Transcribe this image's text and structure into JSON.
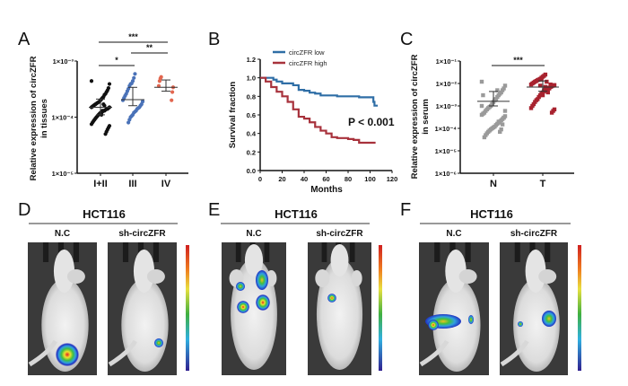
{
  "panel_labels": [
    "A",
    "B",
    "C",
    "D",
    "E",
    "F"
  ],
  "chart_data": [
    {
      "type": "scatter",
      "panel": "A",
      "ylabel_lines": [
        "Relative expression of circZFR",
        "in tissues"
      ],
      "yscale": "log",
      "ylim": [
        1e-05,
        0.001
      ],
      "yticks": [
        {
          "value": 0.001,
          "label": "1×10⁻³"
        },
        {
          "value": 0.0001,
          "label": "1×10⁻⁴"
        },
        {
          "value": 1e-05,
          "label": "1×10⁻⁵"
        }
      ],
      "categories": [
        "I+II",
        "III",
        "IV"
      ],
      "colors": [
        "#111111",
        "#4a72b8",
        "#e2664f"
      ],
      "groups": [
        {
          "name": "I+II",
          "mean": 0.00015,
          "err_top": 0.00021,
          "err_bottom": 0.00011,
          "values": [
            0.00044,
            0.00039,
            0.00033,
            0.0003,
            0.00028,
            0.00026,
            0.00025,
            0.00023,
            0.00022,
            0.00021,
            0.0002,
            0.00019,
            0.000185,
            0.00018,
            0.000175,
            0.00017,
            0.000165,
            0.00016,
            0.000155,
            0.00015,
            0.00015,
            0.000145,
            0.00014,
            0.00014,
            0.000135,
            0.00013,
            0.00013,
            0.000125,
            0.00012,
            0.00012,
            0.000115,
            0.00011,
            0.000105,
            0.0001,
            9.5e-05,
            9e-05,
            8.5e-05,
            8e-05,
            7.5e-05,
            7e-05,
            6.5e-05,
            6e-05,
            5.5e-05,
            5e-05,
            0.00016,
            0.00017,
            0.00013,
            0.00011
          ]
        },
        {
          "name": "III",
          "mean": 0.000205,
          "err_top": 0.00034,
          "err_bottom": 0.00016,
          "values": [
            0.00059,
            0.0005,
            0.00044,
            0.0004,
            0.00039,
            0.00036,
            0.00032,
            0.00029,
            0.00026,
            0.00024,
            0.00022,
            0.0002,
            0.00019,
            0.00017,
            0.00016,
            0.00015,
            0.000145,
            0.00014,
            0.00013,
            0.000125,
            0.00012,
            0.00011,
            0.000105,
            0.0001,
            9e-05,
            8e-05
          ]
        },
        {
          "name": "IV",
          "mean": 0.00034,
          "err_top": 0.00046,
          "err_bottom": 0.00029,
          "values": [
            0.00052,
            0.00049,
            0.00044,
            0.00036,
            0.00034,
            0.00028,
            0.0002
          ]
        }
      ],
      "significance": [
        {
          "from": "I+II",
          "to": "IV",
          "label": "***"
        },
        {
          "from": "III",
          "to": "IV",
          "label": "**"
        },
        {
          "from": "I+II",
          "to": "III",
          "label": "*"
        }
      ]
    },
    {
      "type": "line",
      "panel": "B",
      "xlabel": "Months",
      "ylabel": "Survival fraction",
      "xlim": [
        0,
        120
      ],
      "ylim": [
        0,
        1.2
      ],
      "xticks": [
        "0",
        "20",
        "40",
        "60",
        "80",
        "100",
        "120"
      ],
      "yticks": [
        "0.0",
        "0.2",
        "0.4",
        "0.6",
        "0.8",
        "1.0",
        "1.2"
      ],
      "annotation": "P < 0.001",
      "legend_position": "top-left",
      "series": [
        {
          "name": "circZFR low",
          "color": "#2f6ea6",
          "x": [
            0,
            8,
            12,
            15,
            20,
            25,
            30,
            35,
            40,
            45,
            50,
            55,
            60,
            70,
            80,
            90,
            100,
            103,
            104,
            107
          ],
          "y": [
            1.0,
            1.0,
            0.98,
            0.96,
            0.94,
            0.94,
            0.92,
            0.87,
            0.86,
            0.84,
            0.83,
            0.81,
            0.81,
            0.8,
            0.8,
            0.79,
            0.79,
            0.74,
            0.7,
            0.7
          ]
        },
        {
          "name": "circZFR high",
          "color": "#a8323c",
          "x": [
            0,
            5,
            10,
            15,
            20,
            25,
            30,
            35,
            40,
            45,
            50,
            55,
            60,
            65,
            70,
            80,
            85,
            90,
            105
          ],
          "y": [
            1.0,
            0.96,
            0.9,
            0.85,
            0.8,
            0.74,
            0.66,
            0.58,
            0.56,
            0.52,
            0.47,
            0.43,
            0.4,
            0.36,
            0.35,
            0.34,
            0.33,
            0.3,
            0.3
          ]
        }
      ]
    },
    {
      "type": "scatter",
      "panel": "C",
      "ylabel_lines": [
        "Relative expression of circZFR",
        "in serum"
      ],
      "yscale": "log",
      "ylim": [
        1e-06,
        0.1
      ],
      "yticks": [
        {
          "value": 0.1,
          "label": "1×10⁻¹"
        },
        {
          "value": 0.01,
          "label": "1×10⁻²"
        },
        {
          "value": 0.001,
          "label": "1×10⁻³"
        },
        {
          "value": 0.0001,
          "label": "1×10⁻⁴"
        },
        {
          "value": 1e-05,
          "label": "1×10⁻⁵"
        },
        {
          "value": 1e-06,
          "label": "1×10⁻⁶"
        }
      ],
      "categories": [
        "N",
        "T"
      ],
      "colors": [
        "#9a9a9a",
        "#a8222e"
      ],
      "groups": [
        {
          "name": "N",
          "mean": 0.0016,
          "err_top": 0.0044,
          "err_bottom": 0.001,
          "values": [
            0.012,
            0.008,
            0.006,
            0.005,
            0.004,
            0.0035,
            0.003,
            0.0025,
            0.002,
            0.0018,
            0.0015,
            0.0012,
            0.001,
            0.0009,
            0.0008,
            0.0007,
            0.0006,
            0.0005,
            0.00045,
            0.0004,
            0.00035,
            0.0003,
            0.00026,
            0.00023,
            0.0002,
            0.00018,
            0.00016,
            0.00014,
            0.00012,
            0.00011,
            0.0001,
            9e-05,
            8e-05,
            7e-05,
            6e-05,
            5e-05,
            4e-05,
            0.003,
            0.001,
            0.0006,
            0.0003,
            0.00015,
            9e-05,
            7e-05,
            0.0002,
            0.005,
            0.002
          ]
        },
        {
          "name": "T",
          "mean": 0.0069,
          "err_top": 0.013,
          "err_bottom": 0.0045,
          "values": [
            0.025,
            0.022,
            0.02,
            0.018,
            0.016,
            0.015,
            0.014,
            0.013,
            0.012,
            0.011,
            0.01,
            0.009,
            0.0085,
            0.008,
            0.0075,
            0.007,
            0.0065,
            0.006,
            0.0055,
            0.005,
            0.0045,
            0.004,
            0.0035,
            0.003,
            0.0025,
            0.002,
            0.0018,
            0.0015,
            0.0012,
            0.001,
            0.0008,
            0.0007,
            0.0006,
            0.0005,
            0.009,
            0.006,
            0.004,
            0.012,
            0.007,
            0.005,
            0.003,
            0.015,
            0.008
          ]
        }
      ],
      "significance": [
        {
          "from": "N",
          "to": "T",
          "label": "***"
        }
      ]
    }
  ],
  "imaging_panels": [
    {
      "panel": "D",
      "title": "HCT116",
      "conditions": [
        "N.C",
        "sh-circZFR"
      ]
    },
    {
      "panel": "E",
      "title": "HCT116",
      "conditions": [
        "N.C",
        "sh-circZFR"
      ]
    },
    {
      "panel": "F",
      "title": "HCT116",
      "conditions": [
        "N.C",
        "sh-circZFR"
      ]
    }
  ]
}
